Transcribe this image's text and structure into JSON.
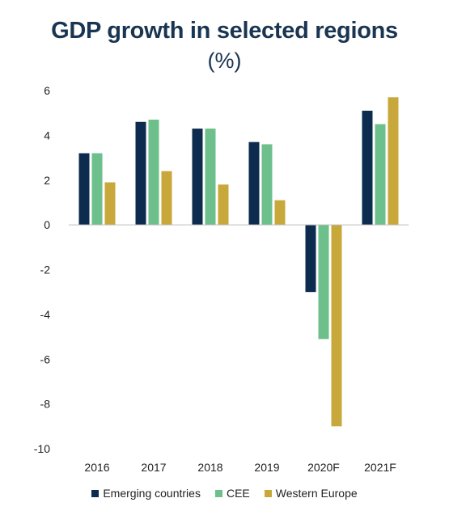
{
  "chart_data": {
    "type": "bar",
    "title": "GDP growth in selected regions",
    "subtitle": "(%)",
    "categories": [
      "2016",
      "2017",
      "2018",
      "2019",
      "2020F",
      "2021F"
    ],
    "series": [
      {
        "name": "Emerging countries",
        "color": "#0d2b4e",
        "values": [
          3.2,
          4.6,
          4.3,
          3.7,
          -3.0,
          5.1
        ]
      },
      {
        "name": "CEE",
        "color": "#6dbf8b",
        "values": [
          3.2,
          4.7,
          4.3,
          3.6,
          -5.1,
          4.5
        ]
      },
      {
        "name": "Western Europe",
        "color": "#c8a83a",
        "values": [
          1.9,
          2.4,
          1.8,
          1.1,
          -9.0,
          5.7
        ]
      }
    ],
    "ylim": [
      -10,
      6
    ],
    "yticks": [
      "6",
      "4",
      "2",
      "0",
      "-2",
      "-4",
      "-6",
      "-8",
      "-10"
    ],
    "grid": false,
    "legend_position": "bottom"
  }
}
